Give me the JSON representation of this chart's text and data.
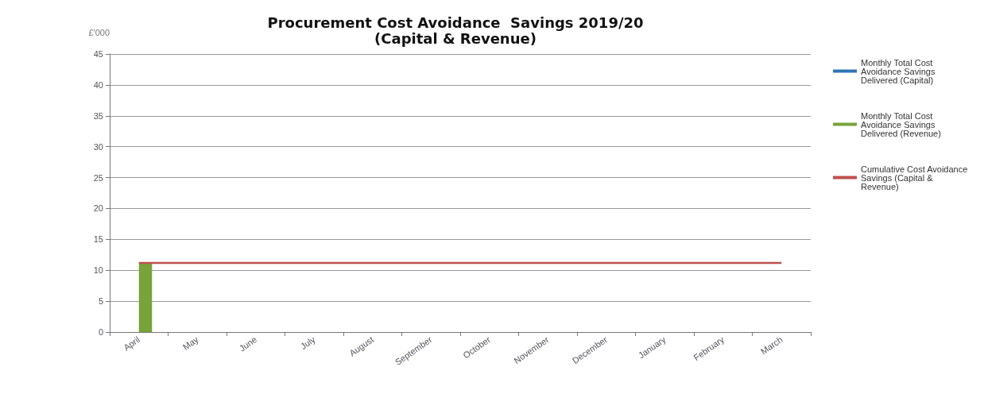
{
  "chart_data": {
    "type": "bar",
    "title": "Procurement Cost Avoidance  Savings 2019/20",
    "subtitle": "(Capital & Revenue)",
    "ylabel": "£'000",
    "categories": [
      "April",
      "May",
      "June",
      "July",
      "August",
      "September",
      "October",
      "November",
      "December",
      "January",
      "February",
      "March"
    ],
    "series": [
      {
        "name": "Monthly Total Cost Avoidance Savings Delivered (Capital)",
        "color": "#2e75b6",
        "values": [
          null,
          null,
          null,
          null,
          null,
          null,
          null,
          null,
          null,
          null,
          null,
          null
        ]
      },
      {
        "name": "Monthly Total Cost Avoidance Savings Delivered (Revenue)",
        "color": "#77a33a",
        "values": [
          11.2,
          null,
          null,
          null,
          null,
          null,
          null,
          null,
          null,
          null,
          null,
          null
        ]
      },
      {
        "name": "Cumulative Cost Avoidance Savings (Capital & Revenue)",
        "type": "line",
        "color": "#c0504d",
        "values": [
          11.2,
          11.2,
          11.2,
          11.2,
          11.2,
          11.2,
          11.2,
          11.2,
          11.2,
          11.2,
          11.2,
          11.2
        ]
      }
    ],
    "ylim": [
      0,
      45
    ],
    "yticks": [
      0,
      5,
      10,
      15,
      20,
      25,
      30,
      35,
      40,
      45
    ],
    "grid": "y",
    "legend": "right",
    "marker": "none"
  }
}
